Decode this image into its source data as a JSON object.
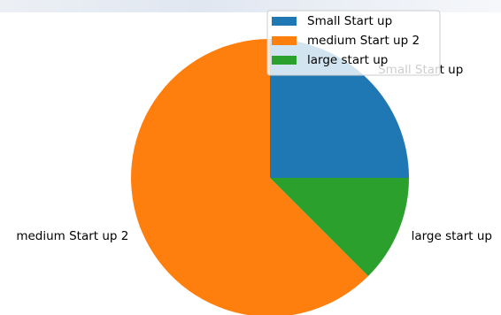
{
  "chart_data": {
    "type": "pie",
    "categories": [
      "Small Start up",
      "medium Start up 2",
      "large start up"
    ],
    "values": [
      25,
      62.5,
      12.5
    ],
    "colors": [
      "#1f77b4",
      "#ff7f0e",
      "#2ca02c"
    ],
    "start_angle_deg": 0,
    "direction": "counterclockwise",
    "legend": {
      "placement": "top-right",
      "entries": [
        "Small Start up",
        "medium Start up 2",
        "large start up"
      ]
    }
  }
}
